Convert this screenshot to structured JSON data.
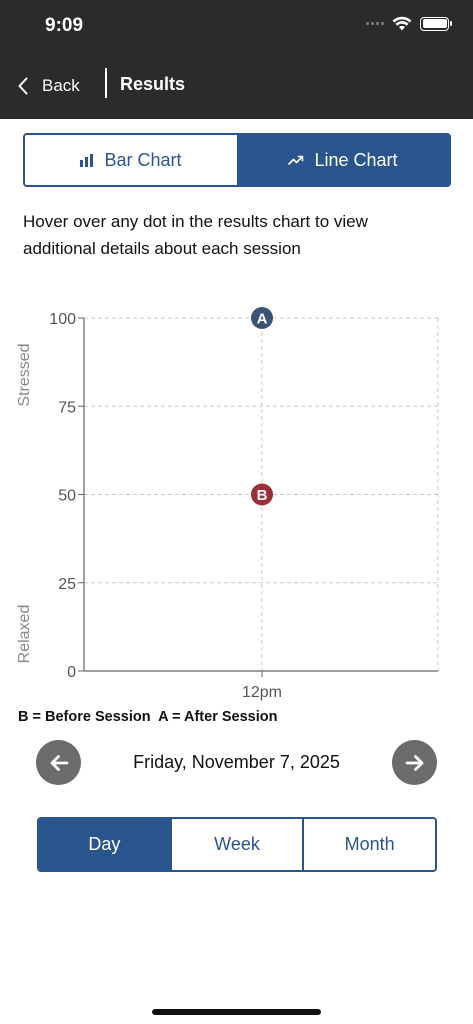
{
  "status": {
    "time": "9:09"
  },
  "nav": {
    "back_label": "Back",
    "title": "Results"
  },
  "chart_toggle": {
    "bar_label": "Bar Chart",
    "line_label": "Line Chart",
    "selected": "Line Chart"
  },
  "instructions": "Hover over any dot in the results chart to view additional details about each session",
  "chart_data": {
    "type": "scatter",
    "x": [
      "12pm"
    ],
    "ylim": [
      0,
      100
    ],
    "yticks": [
      0,
      25,
      50,
      75,
      100
    ],
    "ylabel_top": "Stressed",
    "ylabel_bottom": "Relaxed",
    "grid": true,
    "series": [
      {
        "marker": "B",
        "color": "#9b2f35",
        "values": [
          50
        ]
      },
      {
        "marker": "A",
        "color": "#3b5377",
        "values": [
          100
        ]
      }
    ]
  },
  "legend_key": "B = Before Session  A = After Session",
  "date_nav": {
    "date": "Friday, November 7, 2025"
  },
  "period_toggle": {
    "options": [
      "Day",
      "Week",
      "Month"
    ],
    "selected": "Day"
  },
  "colors": {
    "primary": "#2a548d",
    "header": "#2b2b2b",
    "before_marker": "#9b2f35",
    "after_marker": "#3b5377"
  }
}
